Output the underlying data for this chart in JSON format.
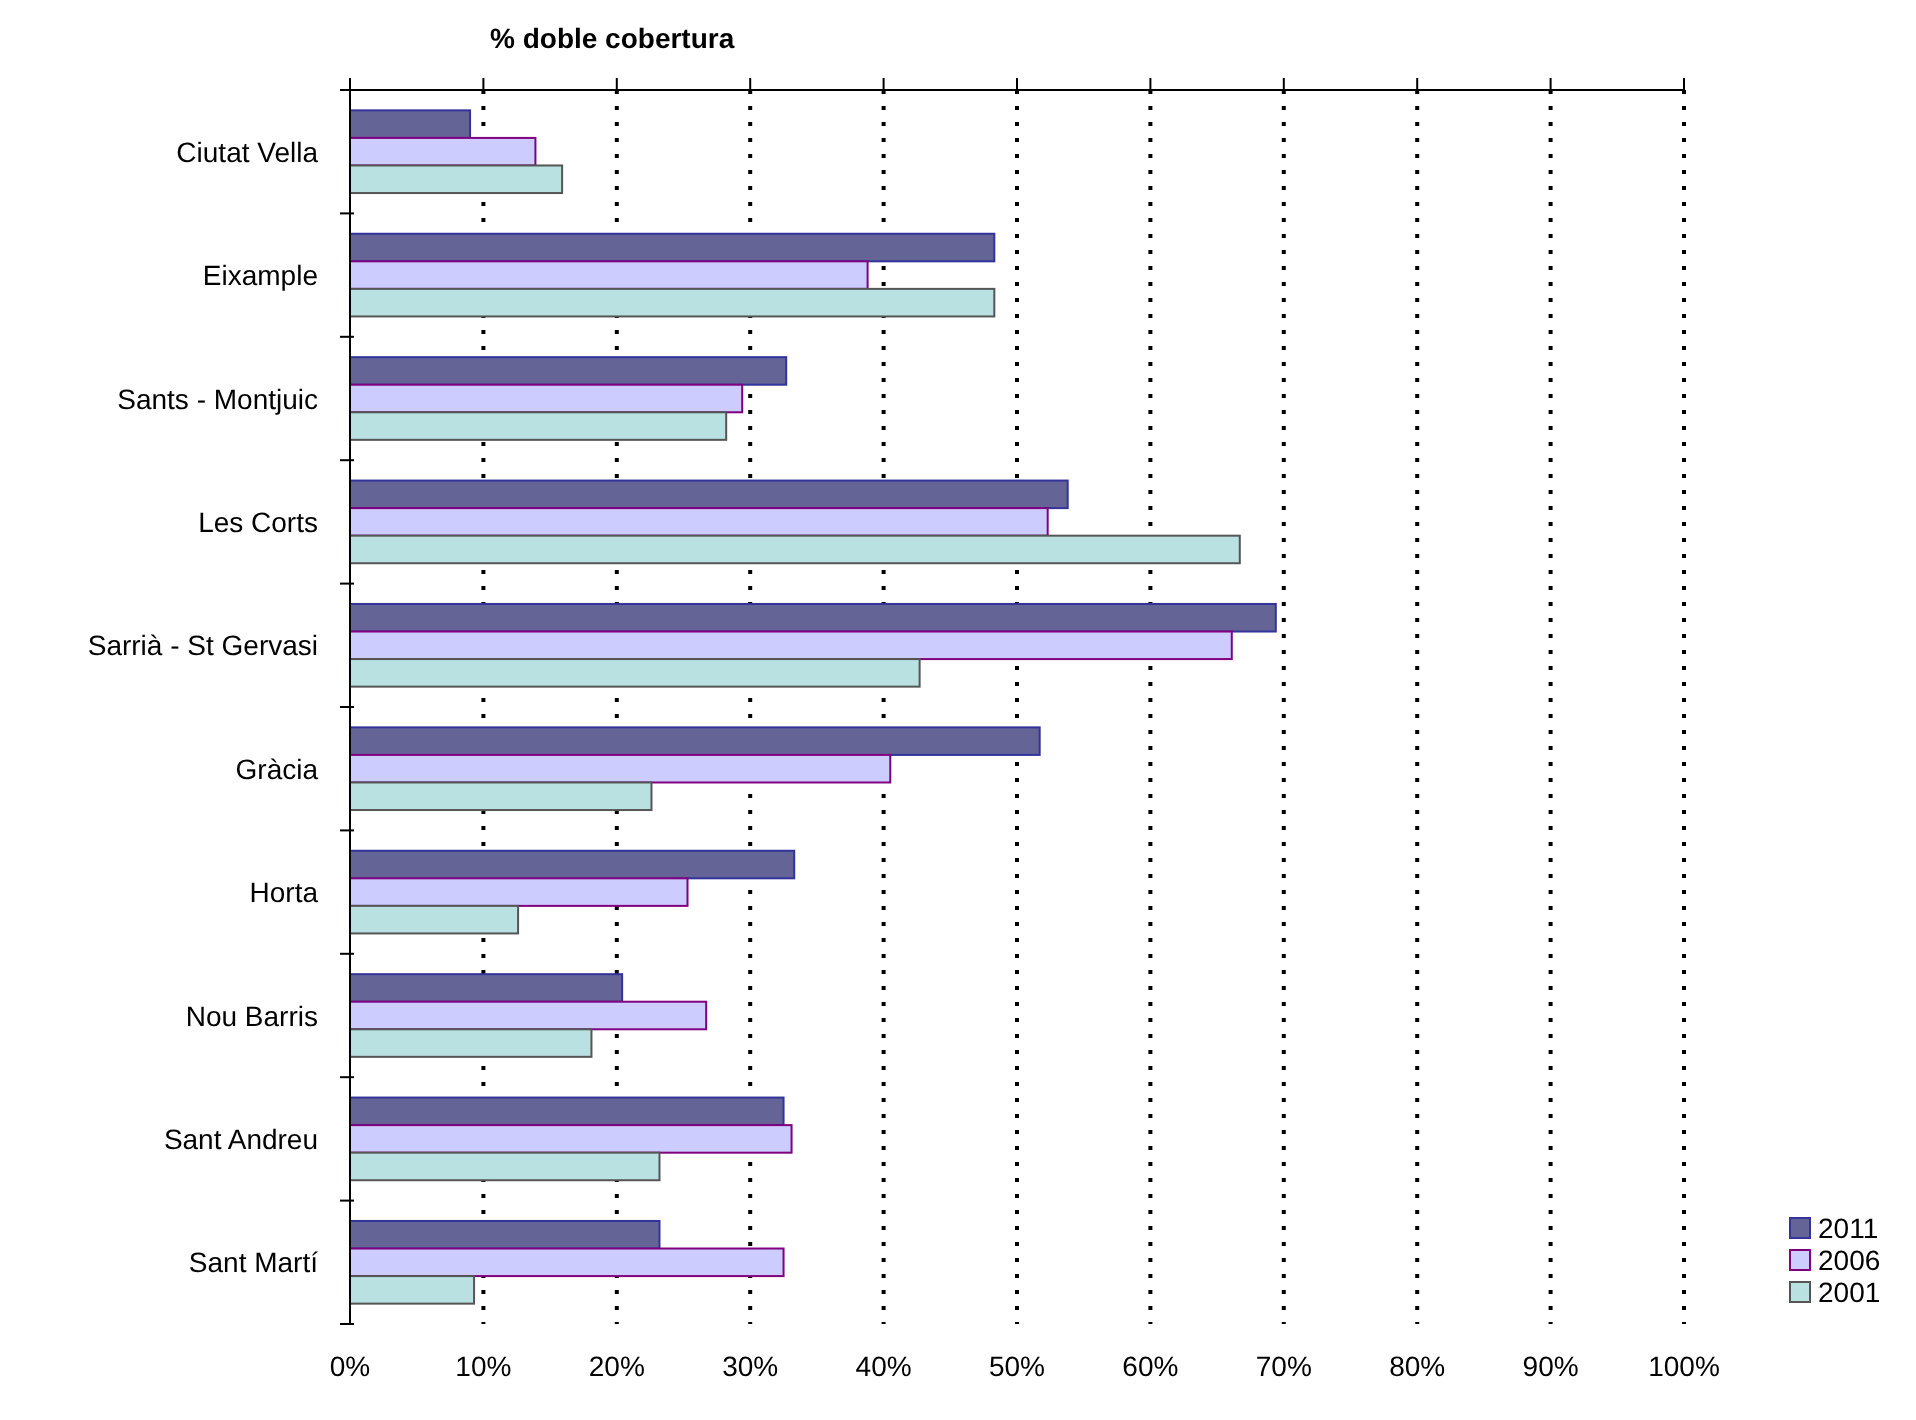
{
  "chart_data": {
    "type": "bar",
    "orientation": "horizontal",
    "title": "% doble cobertura",
    "categories": [
      "Ciutat Vella",
      "Eixample",
      "Sants - Montjuic",
      "Les Corts",
      "Sarrià - St Gervasi",
      "Gràcia",
      "Horta",
      "Nou Barris",
      "Sant Andreu",
      "Sant Martí"
    ],
    "series": [
      {
        "name": "2011",
        "color": "#646496",
        "values": [
          9.0,
          48.3,
          32.7,
          53.8,
          69.4,
          51.7,
          33.3,
          20.4,
          32.5,
          23.2
        ]
      },
      {
        "name": "2006",
        "color": "#ccccff",
        "values": [
          13.9,
          38.8,
          29.4,
          52.3,
          66.1,
          40.5,
          25.3,
          26.7,
          33.1,
          32.5
        ]
      },
      {
        "name": "2001",
        "color": "#b9e1e1",
        "values": [
          15.9,
          48.3,
          28.2,
          66.7,
          42.7,
          22.6,
          12.6,
          18.1,
          23.2,
          9.3
        ]
      }
    ],
    "xlim": [
      0,
      100
    ],
    "xticks": [
      {
        "value": 0,
        "label": "0%"
      },
      {
        "value": 10,
        "label": "10%"
      },
      {
        "value": 20,
        "label": "20%"
      },
      {
        "value": 30,
        "label": "30%"
      },
      {
        "value": 40,
        "label": "40%"
      },
      {
        "value": 50,
        "label": "50%"
      },
      {
        "value": 60,
        "label": "60%"
      },
      {
        "value": 70,
        "label": "70%"
      },
      {
        "value": 80,
        "label": "80%"
      },
      {
        "value": 90,
        "label": "90%"
      },
      {
        "value": 100,
        "label": "100%"
      }
    ],
    "grid": "x",
    "legend": "bottom right"
  }
}
